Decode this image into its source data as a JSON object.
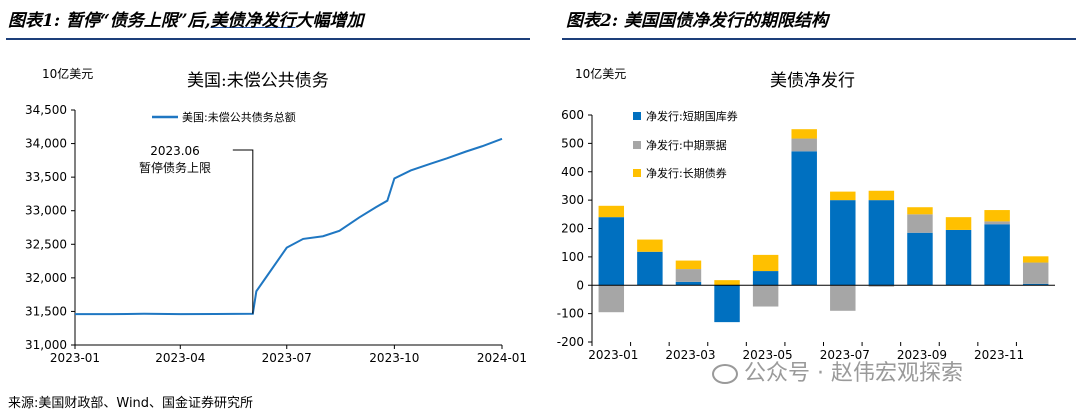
{
  "fig1": {
    "label": "图表1:",
    "title_pre": "暂停“债务上限”后,",
    "title_hl": "美债净发行",
    "title_post": "大幅增加"
  },
  "fig2": {
    "label": "图表2:",
    "title": "美国国债净发行的期限结构"
  },
  "source": "来源:美国财政部、Wind、国金证券研究所",
  "watermark": "公众号 · 赵伟宏观探索",
  "colors": {
    "line": "#1f77c2",
    "short": "#0070c0",
    "mid": "#a6a6a6",
    "long": "#ffc000",
    "rule": "#1d3f7a"
  },
  "chart_data": [
    {
      "type": "line",
      "title": "美国:未偿公共债务",
      "unit": "10亿美元",
      "series": [
        {
          "name": "美国:未偿公共债务总额",
          "x": [
            "2023-01-01",
            "2023-02-01",
            "2023-03-01",
            "2023-04-01",
            "2023-05-01",
            "2023-06-02",
            "2023-06-05",
            "2023-06-15",
            "2023-07-01",
            "2023-07-15",
            "2023-08-01",
            "2023-08-15",
            "2023-09-01",
            "2023-09-15",
            "2023-09-25",
            "2023-10-01",
            "2023-10-15",
            "2023-11-01",
            "2023-11-15",
            "2023-12-01",
            "2023-12-15",
            "2024-01-01"
          ],
          "values": [
            31460,
            31460,
            31465,
            31460,
            31462,
            31465,
            31800,
            32050,
            32450,
            32580,
            32620,
            32700,
            32900,
            33050,
            33150,
            33480,
            33600,
            33700,
            33780,
            33880,
            33960,
            34070
          ]
        }
      ],
      "x_ticks": [
        "2023-01",
        "2023-04",
        "2023-07",
        "2023-10",
        "2024-01"
      ],
      "y_ticks": [
        "31,000",
        "31,500",
        "32,000",
        "32,500",
        "33,000",
        "33,500",
        "34,000",
        "34,500"
      ],
      "ylim": [
        31000,
        34500
      ],
      "annotation": {
        "x": "2023-06-02",
        "date": "2023.06",
        "text": "暂停债务上限"
      },
      "legend_position": "top-left"
    },
    {
      "type": "bar",
      "stacked": true,
      "title": "美债净发行",
      "unit": "10亿美元",
      "categories": [
        "2023-01",
        "2023-02",
        "2023-03",
        "2023-04",
        "2023-05",
        "2023-06",
        "2023-07",
        "2023-08",
        "2023-09",
        "2023-10",
        "2023-11",
        "2023-12"
      ],
      "tick_labels": [
        "2023-01",
        "",
        "2023-03",
        "",
        "2023-05",
        "",
        "2023-07",
        "",
        "2023-09",
        "",
        "2023-11",
        ""
      ],
      "series": [
        {
          "name": "净发行:短期国库券",
          "values": [
            240,
            118,
            12,
            -130,
            50,
            472,
            300,
            300,
            185,
            195,
            215,
            5
          ]
        },
        {
          "name": "净发行:中期票据",
          "values": [
            -95,
            0,
            45,
            0,
            -75,
            45,
            -90,
            -5,
            65,
            0,
            10,
            75
          ]
        },
        {
          "name": "净发行:长期债券",
          "values": [
            40,
            43,
            30,
            18,
            57,
            33,
            30,
            33,
            25,
            45,
            40,
            22
          ]
        }
      ],
      "y_ticks": [
        "-200",
        "-100",
        "0",
        "100",
        "200",
        "300",
        "400",
        "500",
        "600"
      ],
      "ylim": [
        -200,
        600
      ],
      "legend_position": "top-left"
    }
  ]
}
